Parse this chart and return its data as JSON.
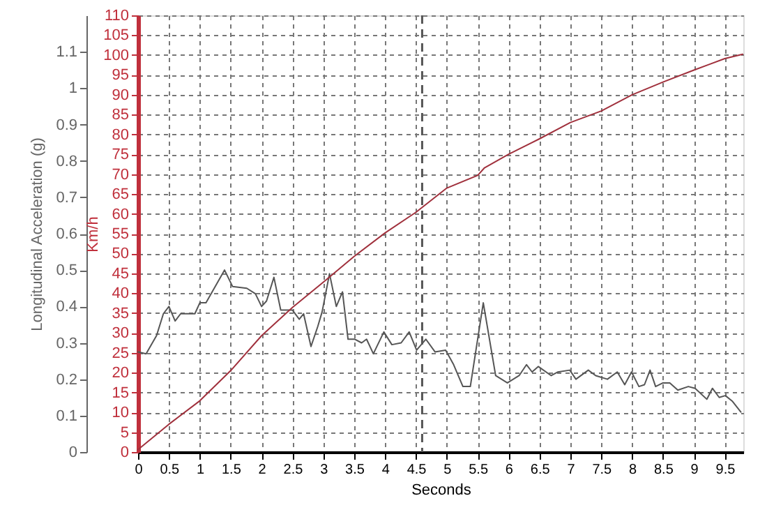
{
  "chart_data": {
    "type": "line",
    "xlabel": "Seconds",
    "ylabel": "Longitudinal Acceleration (g)",
    "y2label": "Km/h",
    "xlim": [
      0,
      9.8
    ],
    "xticks": [
      0,
      0.5,
      1,
      1.5,
      2,
      2.5,
      3,
      3.5,
      4,
      4.5,
      5,
      5.5,
      6,
      6.5,
      7,
      7.5,
      8,
      8.5,
      9,
      9.5
    ],
    "ylim": [
      0,
      1.2
    ],
    "yticks": [
      0,
      0.1,
      0.2,
      0.3,
      0.4,
      0.5,
      0.6,
      0.7,
      0.8,
      0.9,
      1,
      1.1
    ],
    "y2lim": [
      0,
      110
    ],
    "y2ticks": [
      0,
      5,
      10,
      15,
      20,
      25,
      30,
      35,
      40,
      45,
      50,
      55,
      60,
      65,
      70,
      75,
      80,
      85,
      90,
      95,
      100,
      105,
      110
    ],
    "grid": true,
    "marker": "none",
    "line_style": "solid",
    "ref_lines": [
      {
        "axis": "x",
        "value": 4.6,
        "color": "#555555",
        "line_style": "dashed"
      }
    ],
    "series": [
      {
        "color": "#555555",
        "x": [
          0,
          0.13,
          0.3,
          0.41,
          0.5,
          0.6,
          0.69,
          0.92,
          1.0,
          1.1,
          1.4,
          1.53,
          1.76,
          1.9,
          2.0,
          2.08,
          2.2,
          2.31,
          2.5,
          2.61,
          2.68,
          2.8,
          2.91,
          2.98,
          3.1,
          3.21,
          3.31,
          3.4,
          3.51,
          3.62,
          3.7,
          3.81,
          3.98,
          4.11,
          4.26,
          4.39,
          4.51,
          4.66,
          4.81,
          4.98,
          5.11,
          5.26,
          5.38,
          5.59,
          5.79,
          5.98,
          6.17,
          6.29,
          6.38,
          6.48,
          6.69,
          6.8,
          6.99,
          7.09,
          7.29,
          7.41,
          7.6,
          7.76,
          7.88,
          7.99,
          8.11,
          8.2,
          8.29,
          8.38,
          8.5,
          8.61,
          8.74,
          8.91,
          9.02,
          9.21,
          9.3,
          9.41,
          9.51,
          9.62,
          9.76
        ],
        "values": [
          0.275,
          0.27,
          0.32,
          0.38,
          0.4,
          0.36,
          0.38,
          0.38,
          0.41,
          0.41,
          0.5,
          0.455,
          0.45,
          0.435,
          0.4,
          0.415,
          0.48,
          0.39,
          0.39,
          0.365,
          0.38,
          0.29,
          0.345,
          0.385,
          0.49,
          0.4,
          0.44,
          0.31,
          0.31,
          0.3,
          0.31,
          0.27,
          0.33,
          0.295,
          0.3,
          0.33,
          0.28,
          0.31,
          0.275,
          0.28,
          0.24,
          0.18,
          0.18,
          0.41,
          0.21,
          0.19,
          0.21,
          0.24,
          0.22,
          0.235,
          0.21,
          0.22,
          0.225,
          0.2,
          0.225,
          0.21,
          0.2,
          0.22,
          0.185,
          0.22,
          0.18,
          0.185,
          0.225,
          0.18,
          0.19,
          0.19,
          0.17,
          0.18,
          0.175,
          0.145,
          0.175,
          0.15,
          0.155,
          0.14,
          0.11
        ]
      },
      {
        "color": "#a0303c",
        "axis": "y2",
        "x": [
          0,
          0.5,
          1,
          1.5,
          2,
          2.5,
          3,
          3.5,
          4,
          4.5,
          5,
          5.5,
          5.61,
          6,
          6.5,
          7,
          7.5,
          8,
          8.5,
          9,
          9.5,
          9.79
        ],
        "values": [
          0.6,
          7,
          12.9,
          20.5,
          29.3,
          36.4,
          42.8,
          49.3,
          55.2,
          60.4,
          66.5,
          69.7,
          71.6,
          75,
          78.9,
          83,
          85.9,
          90,
          93.2,
          96.2,
          99.1,
          100.2
        ]
      }
    ]
  }
}
